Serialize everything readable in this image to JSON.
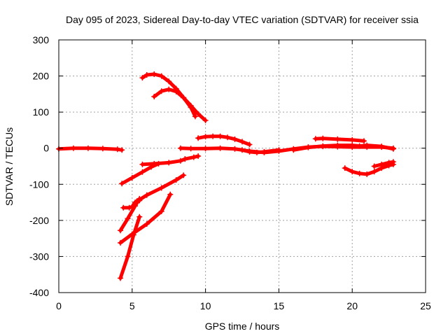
{
  "chart_data": {
    "type": "scatter",
    "title": "Day 095 of 2023, Sidereal Day-to-day VTEC variation (SDTVAR) for receiver ssia",
    "xlabel": "GPS time / hours",
    "ylabel": "SDTVAR / TECUs",
    "xlim": [
      0,
      25
    ],
    "ylim": [
      -400,
      300
    ],
    "xticks": [
      "0",
      "5",
      "10",
      "15",
      "20",
      "25"
    ],
    "yticks": [
      "300",
      "200",
      "100",
      "0",
      "-100",
      "-200",
      "-300",
      "-400"
    ],
    "grid": true,
    "color": "#ff0000",
    "marker": "plus",
    "series": [
      {
        "x": [
          0.0,
          1.0,
          2.0,
          3.0,
          4.0,
          4.3
        ],
        "y": [
          -2,
          0,
          0,
          -1,
          -3,
          -5
        ]
      },
      {
        "x": [
          4.3,
          5.0,
          5.7,
          6.3,
          6.8
        ],
        "y": [
          -98,
          -82,
          -66,
          -52,
          -43
        ]
      },
      {
        "x": [
          5.7,
          6.5,
          7.5,
          8.3,
          8.6
        ],
        "y": [
          -45,
          -43,
          -40,
          -35,
          -30
        ]
      },
      {
        "x": [
          8.6,
          9.2,
          9.5
        ],
        "y": [
          -30,
          -25,
          -22
        ]
      },
      {
        "x": [
          5.7,
          6.0,
          6.5,
          7.0,
          7.5,
          8.0,
          8.5,
          9.0,
          9.5,
          10.0
        ],
        "y": [
          195,
          203,
          205,
          200,
          185,
          165,
          140,
          118,
          95,
          77
        ]
      },
      {
        "x": [
          6.5,
          7.0,
          7.5,
          8.0,
          8.5,
          9.0,
          9.3
        ],
        "y": [
          143,
          158,
          163,
          157,
          140,
          113,
          88
        ]
      },
      {
        "x": [
          4.4,
          4.8,
          5.0,
          5.2,
          5.5
        ],
        "y": [
          -165,
          -165,
          -162,
          -150,
          -145
        ]
      },
      {
        "x": [
          5.3,
          6.0,
          7.0,
          8.0,
          8.5
        ],
        "y": [
          -148,
          -130,
          -110,
          -88,
          -75
        ]
      },
      {
        "x": [
          4.2,
          4.7,
          5.2,
          5.5
        ],
        "y": [
          -228,
          -195,
          -160,
          -140
        ]
      },
      {
        "x": [
          4.2,
          5.0,
          6.0,
          7.0,
          7.6
        ],
        "y": [
          -262,
          -238,
          -210,
          -175,
          -128
        ]
      },
      {
        "x": [
          4.2,
          4.7,
          5.1,
          5.5
        ],
        "y": [
          -360,
          -300,
          -240,
          -190
        ]
      },
      {
        "x": [
          8.3,
          9.0,
          10.0,
          11.0,
          12.0,
          13.0,
          14.0,
          15.0,
          16.0,
          17.0,
          18.0,
          19.0,
          20.0,
          21.0,
          22.0,
          22.8
        ],
        "y": [
          0,
          -1,
          -1,
          0,
          -2,
          -8,
          -12,
          -8,
          -2,
          3,
          5,
          4,
          3,
          3,
          3,
          0
        ]
      },
      {
        "x": [
          9.5,
          10.0,
          10.5,
          11.0,
          11.5,
          12.0,
          12.5,
          13.0
        ],
        "y": [
          28,
          32,
          33,
          33,
          30,
          25,
          18,
          10
        ]
      },
      {
        "x": [
          12.5,
          13.0,
          13.5,
          14.0,
          15.0
        ],
        "y": [
          -5,
          -10,
          -12,
          -10,
          -5
        ]
      },
      {
        "x": [
          16.0,
          17.0,
          18.0,
          19.0,
          20.0,
          20.5,
          21.0,
          22.0,
          22.8
        ],
        "y": [
          -5,
          2,
          6,
          8,
          8,
          6,
          8,
          5,
          -2
        ]
      },
      {
        "x": [
          17.5,
          18.0,
          19.0,
          20.0,
          20.8
        ],
        "y": [
          26,
          27,
          25,
          23,
          20
        ]
      },
      {
        "x": [
          19.5,
          20.0,
          20.5,
          21.0,
          21.5,
          22.0,
          22.5,
          22.8
        ],
        "y": [
          -55,
          -65,
          -70,
          -72,
          -65,
          -55,
          -48,
          -45
        ]
      },
      {
        "x": [
          21.5,
          22.0,
          22.5,
          22.8
        ],
        "y": [
          -50,
          -45,
          -40,
          -38
        ]
      }
    ]
  }
}
